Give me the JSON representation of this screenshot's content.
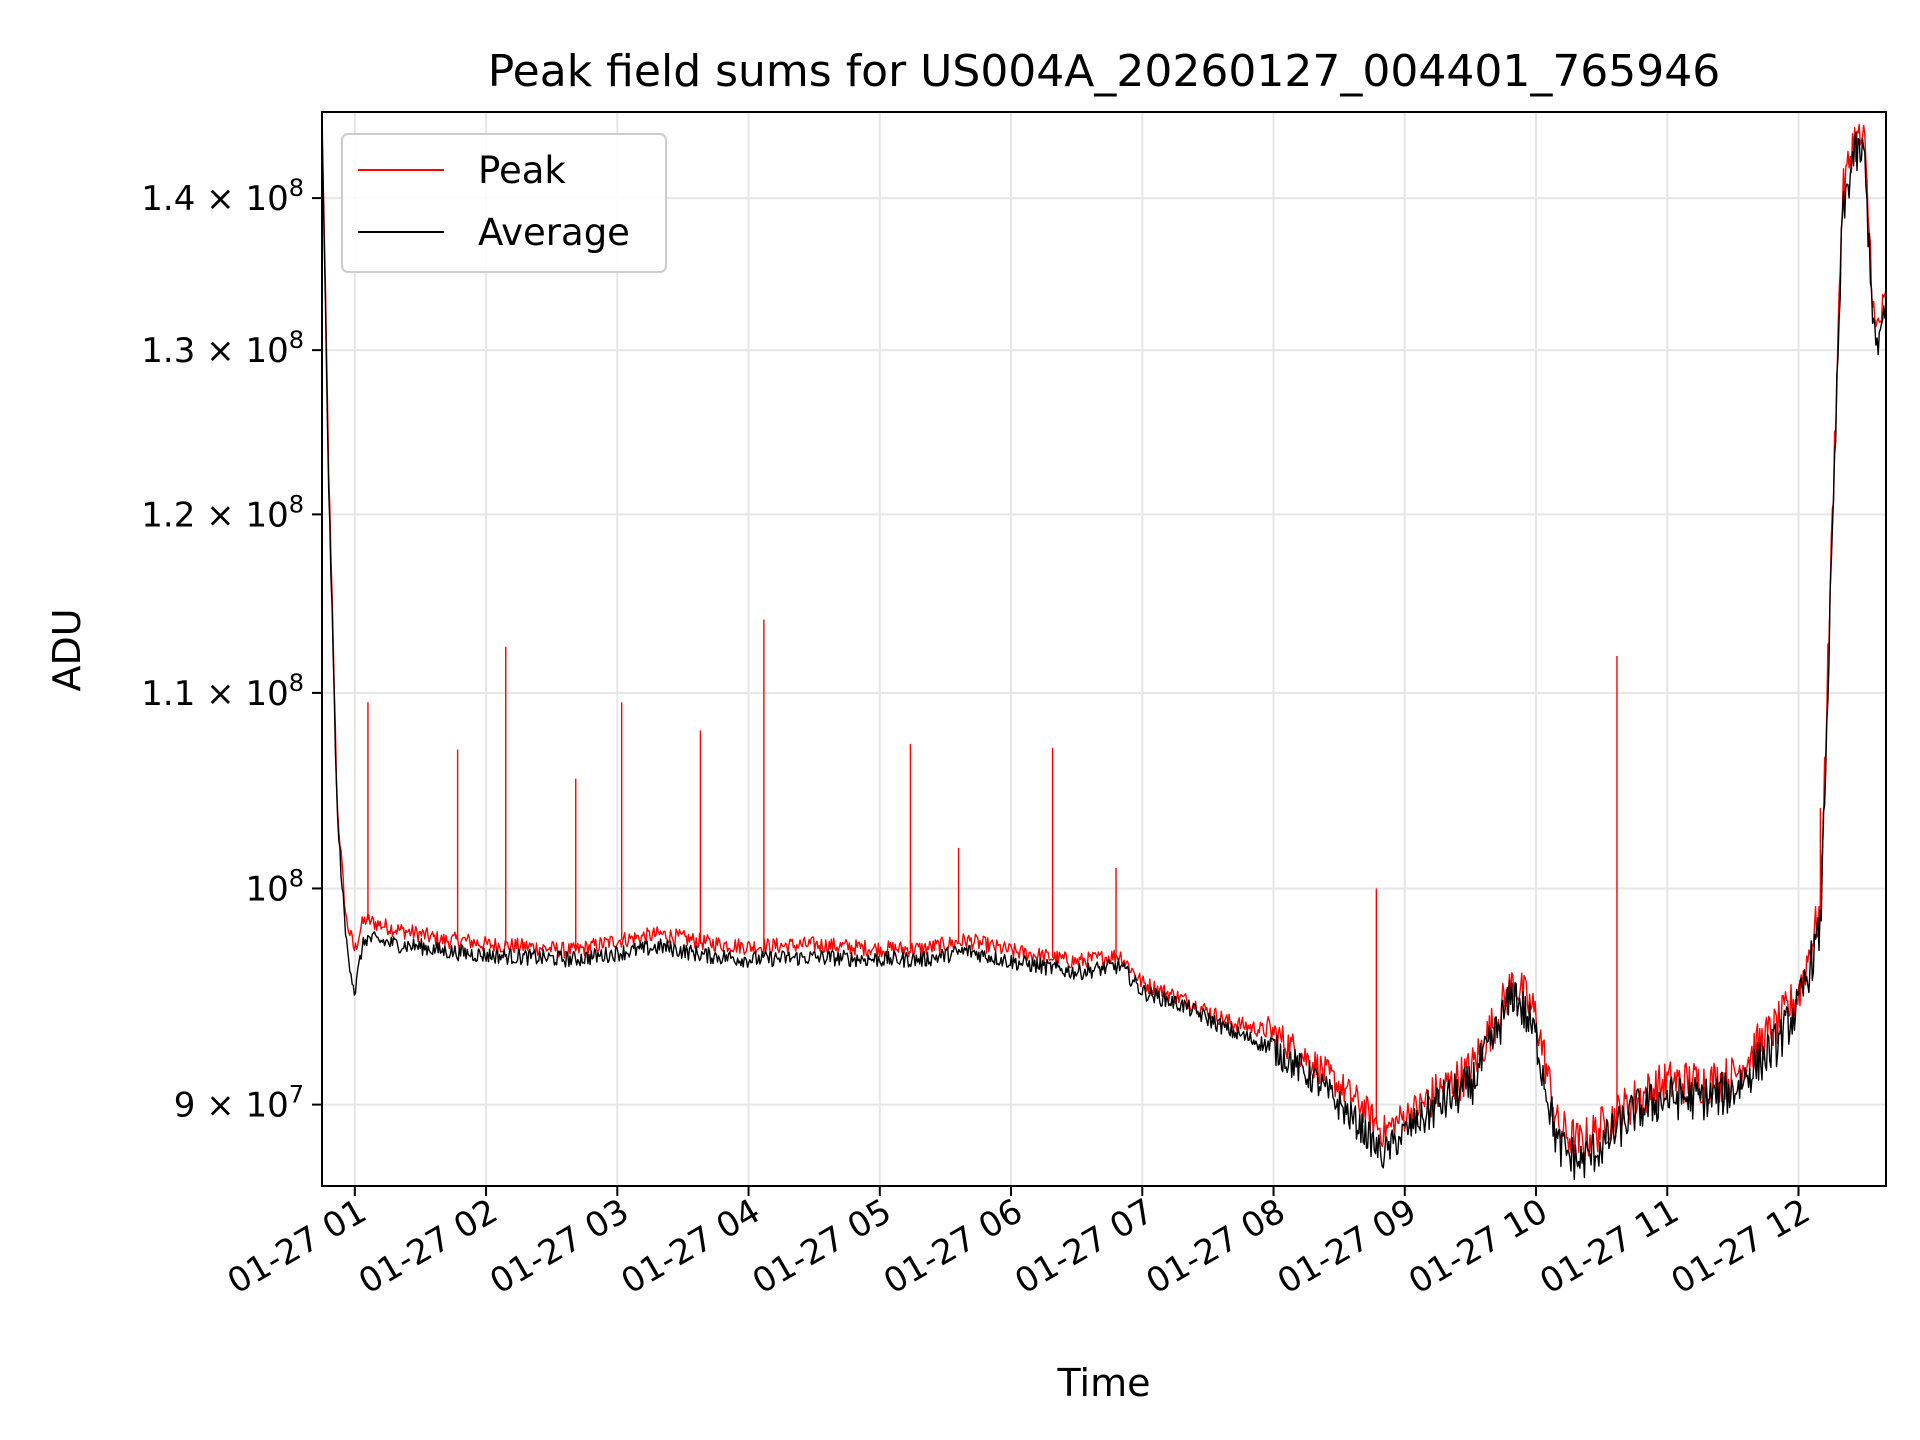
{
  "chart_data": {
    "type": "line",
    "title": "Peak field sums for US004A_20260127_004401_765946",
    "xlabel": "Time",
    "ylabel": "ADU",
    "y_scale": "log",
    "ylim": [
      86500000,
      146000000
    ],
    "xlim": [
      "2026-01-27 00:45",
      "2026-01-27 12:40"
    ],
    "grid": true,
    "legend_position": "upper-left",
    "x_ticks": [
      {
        "t": "2026-01-27 01:00",
        "label": "01-27 01"
      },
      {
        "t": "2026-01-27 02:00",
        "label": "01-27 02"
      },
      {
        "t": "2026-01-27 03:00",
        "label": "01-27 03"
      },
      {
        "t": "2026-01-27 04:00",
        "label": "01-27 04"
      },
      {
        "t": "2026-01-27 05:00",
        "label": "01-27 05"
      },
      {
        "t": "2026-01-27 06:00",
        "label": "01-27 06"
      },
      {
        "t": "2026-01-27 07:00",
        "label": "01-27 07"
      },
      {
        "t": "2026-01-27 08:00",
        "label": "01-27 08"
      },
      {
        "t": "2026-01-27 09:00",
        "label": "01-27 09"
      },
      {
        "t": "2026-01-27 10:00",
        "label": "01-27 10"
      },
      {
        "t": "2026-01-27 11:00",
        "label": "01-27 11"
      },
      {
        "t": "2026-01-27 12:00",
        "label": "01-27 12"
      }
    ],
    "y_ticks": [
      {
        "value": 90000000,
        "mant": "9",
        "exp": "7"
      },
      {
        "value": 100000000,
        "mant": "",
        "exp": "8"
      },
      {
        "value": 110000000,
        "mant": "1.1",
        "exp": "8"
      },
      {
        "value": 120000000,
        "mant": "1.2",
        "exp": "8"
      },
      {
        "value": 130000000,
        "mant": "1.3",
        "exp": "8"
      },
      {
        "value": 140000000,
        "mant": "1.4",
        "exp": "8"
      }
    ],
    "series": [
      {
        "name": "Peak",
        "color": "#ff0000",
        "x": [
          "2026-01-27 00:45",
          "2026-01-27 00:48",
          "2026-01-27 00:52",
          "2026-01-27 00:56",
          "2026-01-27 01:00",
          "2026-01-27 01:03",
          "2026-01-27 01:05",
          "2026-01-27 01:10",
          "2026-01-27 01:20",
          "2026-01-27 01:30",
          "2026-01-27 01:40",
          "2026-01-27 01:50",
          "2026-01-27 02:00",
          "2026-01-27 02:20",
          "2026-01-27 02:40",
          "2026-01-27 03:00",
          "2026-01-27 03:20",
          "2026-01-27 03:40",
          "2026-01-27 04:00",
          "2026-01-27 04:30",
          "2026-01-27 05:00",
          "2026-01-27 05:20",
          "2026-01-27 05:40",
          "2026-01-27 06:00",
          "2026-01-27 06:30",
          "2026-01-27 06:50",
          "2026-01-27 07:00",
          "2026-01-27 07:20",
          "2026-01-27 07:40",
          "2026-01-27 08:00",
          "2026-01-27 08:20",
          "2026-01-27 08:40",
          "2026-01-27 08:50",
          "2026-01-27 09:00",
          "2026-01-27 09:15",
          "2026-01-27 09:30",
          "2026-01-27 09:40",
          "2026-01-27 09:50",
          "2026-01-27 10:00",
          "2026-01-27 10:10",
          "2026-01-27 10:20",
          "2026-01-27 10:30",
          "2026-01-27 10:45",
          "2026-01-27 11:00",
          "2026-01-27 11:10",
          "2026-01-27 11:20",
          "2026-01-27 11:30",
          "2026-01-27 11:40",
          "2026-01-27 11:50",
          "2026-01-27 12:00",
          "2026-01-27 12:10",
          "2026-01-27 12:20",
          "2026-01-27 12:25",
          "2026-01-27 12:30",
          "2026-01-27 12:35",
          "2026-01-27 12:40"
        ],
        "values": [
          146000000,
          123000000,
          104000000,
          98500000,
          97000000,
          98200000,
          98500000,
          98300000,
          98000000,
          97800000,
          97500000,
          97500000,
          97300000,
          97200000,
          97000000,
          97500000,
          97800000,
          97400000,
          97200000,
          97300000,
          97100000,
          97100000,
          97500000,
          97000000,
          96500000,
          96800000,
          95500000,
          94700000,
          93700000,
          93200000,
          91700000,
          90000000,
          88800000,
          89500000,
          90500000,
          91500000,
          93500000,
          95600000,
          94000000,
          89000000,
          88300000,
          89000000,
          90200000,
          91000000,
          91000000,
          91000000,
          91200000,
          92500000,
          93500000,
          95000000,
          99000000,
          140000000,
          144000000,
          144000000,
          131000000,
          133000000
        ]
      },
      {
        "name": "Average",
        "color": "#000000",
        "x": [
          "2026-01-27 00:45",
          "2026-01-27 00:48",
          "2026-01-27 00:52",
          "2026-01-27 00:56",
          "2026-01-27 01:00",
          "2026-01-27 01:03",
          "2026-01-27 01:05",
          "2026-01-27 01:10",
          "2026-01-27 01:20",
          "2026-01-27 01:30",
          "2026-01-27 01:40",
          "2026-01-27 01:50",
          "2026-01-27 02:00",
          "2026-01-27 02:20",
          "2026-01-27 02:40",
          "2026-01-27 03:00",
          "2026-01-27 03:20",
          "2026-01-27 03:40",
          "2026-01-27 04:00",
          "2026-01-27 04:30",
          "2026-01-27 05:00",
          "2026-01-27 05:20",
          "2026-01-27 05:40",
          "2026-01-27 06:00",
          "2026-01-27 06:30",
          "2026-01-27 06:50",
          "2026-01-27 07:00",
          "2026-01-27 07:20",
          "2026-01-27 07:40",
          "2026-01-27 08:00",
          "2026-01-27 08:20",
          "2026-01-27 08:40",
          "2026-01-27 08:50",
          "2026-01-27 09:00",
          "2026-01-27 09:15",
          "2026-01-27 09:30",
          "2026-01-27 09:40",
          "2026-01-27 09:50",
          "2026-01-27 10:00",
          "2026-01-27 10:10",
          "2026-01-27 10:20",
          "2026-01-27 10:30",
          "2026-01-27 10:45",
          "2026-01-27 11:00",
          "2026-01-27 11:10",
          "2026-01-27 11:20",
          "2026-01-27 11:30",
          "2026-01-27 11:40",
          "2026-01-27 11:50",
          "2026-01-27 12:00",
          "2026-01-27 12:10",
          "2026-01-27 12:20",
          "2026-01-27 12:25",
          "2026-01-27 12:30",
          "2026-01-27 12:35",
          "2026-01-27 12:40"
        ],
        "values": [
          145000000,
          122000000,
          103500000,
          97500000,
          95000000,
          97000000,
          97600000,
          97500000,
          97300000,
          97200000,
          97000000,
          96900000,
          96800000,
          96700000,
          96600000,
          96900000,
          97200000,
          96800000,
          96600000,
          96700000,
          96600000,
          96600000,
          97000000,
          96500000,
          96000000,
          96300000,
          95100000,
          94400000,
          93300000,
          92500000,
          91000000,
          89000000,
          87800000,
          88800000,
          90000000,
          90800000,
          92800000,
          95100000,
          93000000,
          88200000,
          87500000,
          88200000,
          89700000,
          90300000,
          90300000,
          90300000,
          90600000,
          91700000,
          92700000,
          94400000,
          98000000,
          138500000,
          143000000,
          143000000,
          130000000,
          132000000
        ]
      }
    ],
    "peak_spikes": [
      {
        "t": "2026-01-27 01:06",
        "value": 109500000
      },
      {
        "t": "2026-01-27 01:47",
        "value": 107000000
      },
      {
        "t": "2026-01-27 02:09",
        "value": 112500000
      },
      {
        "t": "2026-01-27 02:41",
        "value": 105500000
      },
      {
        "t": "2026-01-27 03:02",
        "value": 109500000
      },
      {
        "t": "2026-01-27 03:38",
        "value": 108000000
      },
      {
        "t": "2026-01-27 04:07",
        "value": 114000000
      },
      {
        "t": "2026-01-27 05:14",
        "value": 107300000
      },
      {
        "t": "2026-01-27 05:36",
        "value": 102000000
      },
      {
        "t": "2026-01-27 06:19",
        "value": 107100000
      },
      {
        "t": "2026-01-27 06:48",
        "value": 101000000
      },
      {
        "t": "2026-01-27 08:47",
        "value": 100000000
      },
      {
        "t": "2026-01-27 10:37",
        "value": 112000000
      },
      {
        "t": "2026-01-27 12:10",
        "value": 104000000
      }
    ]
  },
  "legend": {
    "peak_label": "Peak",
    "average_label": "Average"
  }
}
